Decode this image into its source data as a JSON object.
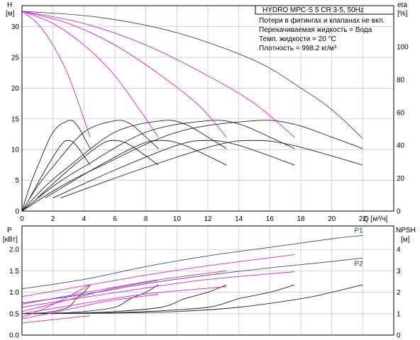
{
  "title": "HYDRO MPC-S 5 CR 3-5, 50Hz",
  "notes": [
    "Потери в фитингах и клапанах не вкл.",
    "Перекачиваемая жидкость = Вода",
    "Темп. жидкости = 20 °C",
    "Плотность = 998.2 кг/м³"
  ],
  "colors": {
    "envelope": "#3c4f7a",
    "pump": "#e020d0",
    "efficiency": "#222222",
    "grid": "#c8c8c8"
  },
  "chart_data": [
    {
      "type": "line",
      "panel": "head",
      "ylabel_top": "H",
      "ylabel_unit": "[м]",
      "y2label_top": "eta",
      "y2label_unit": "[%]",
      "xlabel": "Q [м³/ч]",
      "xlim": [
        0,
        24
      ],
      "ylim": [
        0,
        33.4
      ],
      "y2lim": [
        0,
        125
      ],
      "xticks": [
        "0",
        "2",
        "4",
        "6",
        "8",
        "10",
        "12",
        "14",
        "16",
        "18",
        "20",
        "22"
      ],
      "yticks": [
        "0",
        "5",
        "10",
        "15",
        "20",
        "25",
        "30"
      ],
      "y2ticks": [
        "0",
        "20",
        "40",
        "60",
        "80",
        "100"
      ],
      "grid": true,
      "head_curves": [
        {
          "pumps": 5,
          "color": "envelope",
          "x": [
            0,
            5,
            10,
            15,
            18,
            20,
            22
          ],
          "y": [
            32.5,
            31.5,
            29,
            24.5,
            20,
            16.5,
            11.8
          ]
        },
        {
          "pumps": 4,
          "color": "pump",
          "x": [
            0,
            4,
            8,
            12,
            15,
            17.6
          ],
          "y": [
            32.5,
            30.5,
            27,
            22,
            17.5,
            12
          ]
        },
        {
          "pumps": 3,
          "color": "pump",
          "x": [
            0,
            3,
            6,
            9,
            11.5,
            13.2
          ],
          "y": [
            32.5,
            30.5,
            27,
            22,
            17,
            12
          ]
        },
        {
          "pumps": 2,
          "color": "pump",
          "x": [
            0,
            2,
            4,
            6,
            8,
            8.8
          ],
          "y": [
            32.5,
            30.5,
            27,
            22,
            15,
            12
          ]
        },
        {
          "pumps": 1,
          "color": "pump",
          "x": [
            0,
            1,
            2,
            3,
            4,
            4.4
          ],
          "y": [
            32.5,
            30.5,
            27,
            22,
            15,
            12
          ]
        }
      ],
      "efficiency_curves": [
        {
          "pumps": 1,
          "color": "efficiency",
          "x": [
            0,
            0.5,
            1,
            2,
            3,
            3.5,
            4,
            4.4
          ],
          "eta": [
            0,
            15,
            27,
            48,
            55,
            53,
            45,
            38
          ]
        },
        {
          "pumps": 2,
          "color": "efficiency",
          "x": [
            0,
            1,
            2,
            4,
            6,
            7,
            8,
            8.8
          ],
          "eta": [
            0,
            15,
            27,
            48,
            55,
            53,
            45,
            38
          ]
        },
        {
          "pumps": 3,
          "color": "efficiency",
          "x": [
            0,
            1.5,
            3,
            6,
            9,
            10.5,
            12,
            13.2
          ],
          "eta": [
            0,
            15,
            27,
            48,
            55,
            53,
            45,
            38
          ]
        },
        {
          "pumps": 4,
          "color": "efficiency",
          "x": [
            0,
            2,
            4,
            8,
            12,
            14,
            16,
            17.6
          ],
          "eta": [
            0,
            15,
            27,
            48,
            55,
            53,
            45,
            38
          ]
        },
        {
          "pumps": 5,
          "color": "efficiency",
          "x": [
            0,
            2.5,
            5,
            10,
            15,
            17.5,
            20,
            22
          ],
          "eta": [
            0,
            15,
            27,
            48,
            55,
            53,
            45,
            38
          ]
        },
        {
          "pumps": 1,
          "color": "efficiency",
          "x": [
            0.5,
            1.5,
            2.5,
            3,
            3.5,
            4.4
          ],
          "eta": [
            8,
            25,
            40,
            43,
            40,
            28
          ]
        },
        {
          "pumps": 2,
          "color": "efficiency",
          "x": [
            1,
            3,
            5,
            6,
            7,
            8.8
          ],
          "eta": [
            8,
            25,
            40,
            43,
            40,
            28
          ]
        },
        {
          "pumps": 3,
          "color": "efficiency",
          "x": [
            1.5,
            4.5,
            7.5,
            9,
            10.5,
            13.2
          ],
          "eta": [
            8,
            25,
            40,
            43,
            40,
            28
          ]
        },
        {
          "pumps": 4,
          "color": "efficiency",
          "x": [
            2,
            6,
            10,
            12,
            14,
            17.6
          ],
          "eta": [
            8,
            25,
            40,
            43,
            40,
            28
          ]
        },
        {
          "pumps": 5,
          "color": "efficiency",
          "x": [
            2.5,
            7.5,
            12.5,
            15,
            17.5,
            22
          ],
          "eta": [
            8,
            25,
            40,
            43,
            40,
            28
          ]
        }
      ]
    },
    {
      "type": "line",
      "panel": "power",
      "ylabel_top": "P",
      "ylabel_unit": "[кВт]",
      "y2label_top": "NPSH",
      "y2label_unit": "[м]",
      "xlim": [
        0,
        24
      ],
      "ylim": [
        0,
        2.55
      ],
      "y2lim": [
        0,
        5.1
      ],
      "yticks": [
        "0.0",
        "0.5",
        "1.0",
        "1.5",
        "2.0"
      ],
      "y2ticks": [
        "0",
        "1",
        "2",
        "3",
        "4"
      ],
      "grid": true,
      "series": [
        {
          "name": "P1",
          "color": "envelope",
          "x": [
            0,
            4,
            8,
            12,
            16,
            20,
            22
          ],
          "y": [
            1.08,
            1.3,
            1.6,
            1.85,
            2.05,
            2.25,
            2.33
          ]
        },
        {
          "name": "P2",
          "color": "envelope",
          "x": [
            0,
            4,
            8,
            12,
            16,
            20,
            22
          ],
          "y": [
            0.75,
            0.95,
            1.2,
            1.4,
            1.57,
            1.72,
            1.8
          ]
        },
        {
          "name": "",
          "color": "pump",
          "x": [
            0,
            4,
            8,
            12,
            17.6
          ],
          "y": [
            0.9,
            1.15,
            1.4,
            1.62,
            1.88
          ]
        },
        {
          "name": "",
          "color": "pump",
          "x": [
            0,
            4,
            8,
            12,
            17.6
          ],
          "y": [
            0.65,
            0.88,
            1.1,
            1.3,
            1.48
          ]
        },
        {
          "name": "",
          "color": "pump",
          "x": [
            0,
            3,
            6,
            9,
            13.2
          ],
          "y": [
            0.72,
            0.92,
            1.12,
            1.3,
            1.5
          ]
        },
        {
          "name": "",
          "color": "pump",
          "x": [
            0,
            3,
            6,
            9,
            13.2
          ],
          "y": [
            0.5,
            0.68,
            0.86,
            1.0,
            1.13
          ]
        },
        {
          "name": "",
          "color": "pump",
          "x": [
            0,
            2,
            4,
            6,
            8.8
          ],
          "y": [
            0.55,
            0.73,
            0.92,
            1.1,
            1.28
          ]
        },
        {
          "name": "",
          "color": "pump",
          "x": [
            0,
            2,
            4,
            6,
            8.8
          ],
          "y": [
            0.38,
            0.52,
            0.68,
            0.82,
            0.95
          ]
        },
        {
          "name": "",
          "color": "pump",
          "x": [
            0,
            1,
            2,
            3,
            4.4
          ],
          "y": [
            0.42,
            0.55,
            0.72,
            0.9,
            1.18
          ]
        },
        {
          "name": "",
          "color": "pump",
          "x": [
            0,
            1,
            2,
            3,
            4.4
          ],
          "y": [
            0.28,
            0.32,
            0.36,
            0.4,
            0.45
          ]
        }
      ],
      "npsh_curves": [
        {
          "color": "efficiency",
          "x": [
            0,
            5,
            10,
            14,
            18,
            20,
            22
          ],
          "y": [
            1.0,
            1.02,
            1.1,
            1.3,
            1.7,
            2.0,
            2.35
          ]
        },
        {
          "color": "efficiency",
          "x": [
            0,
            4,
            8,
            12,
            14,
            16,
            17.6
          ],
          "y": [
            1.0,
            1.02,
            1.1,
            1.3,
            1.7,
            2.0,
            2.35
          ]
        },
        {
          "color": "efficiency",
          "x": [
            0,
            3,
            6,
            9,
            10.5,
            12,
            13.2
          ],
          "y": [
            1.0,
            1.02,
            1.1,
            1.3,
            1.7,
            2.0,
            2.35
          ]
        },
        {
          "color": "efficiency",
          "x": [
            0,
            2,
            4,
            6,
            7,
            8,
            8.8
          ],
          "y": [
            1.0,
            1.02,
            1.1,
            1.3,
            1.7,
            2.0,
            2.35
          ]
        },
        {
          "color": "efficiency",
          "x": [
            0,
            1,
            2,
            3,
            3.5,
            4,
            4.4
          ],
          "y": [
            1.0,
            1.02,
            1.1,
            1.3,
            1.7,
            2.0,
            2.35
          ]
        }
      ]
    }
  ]
}
